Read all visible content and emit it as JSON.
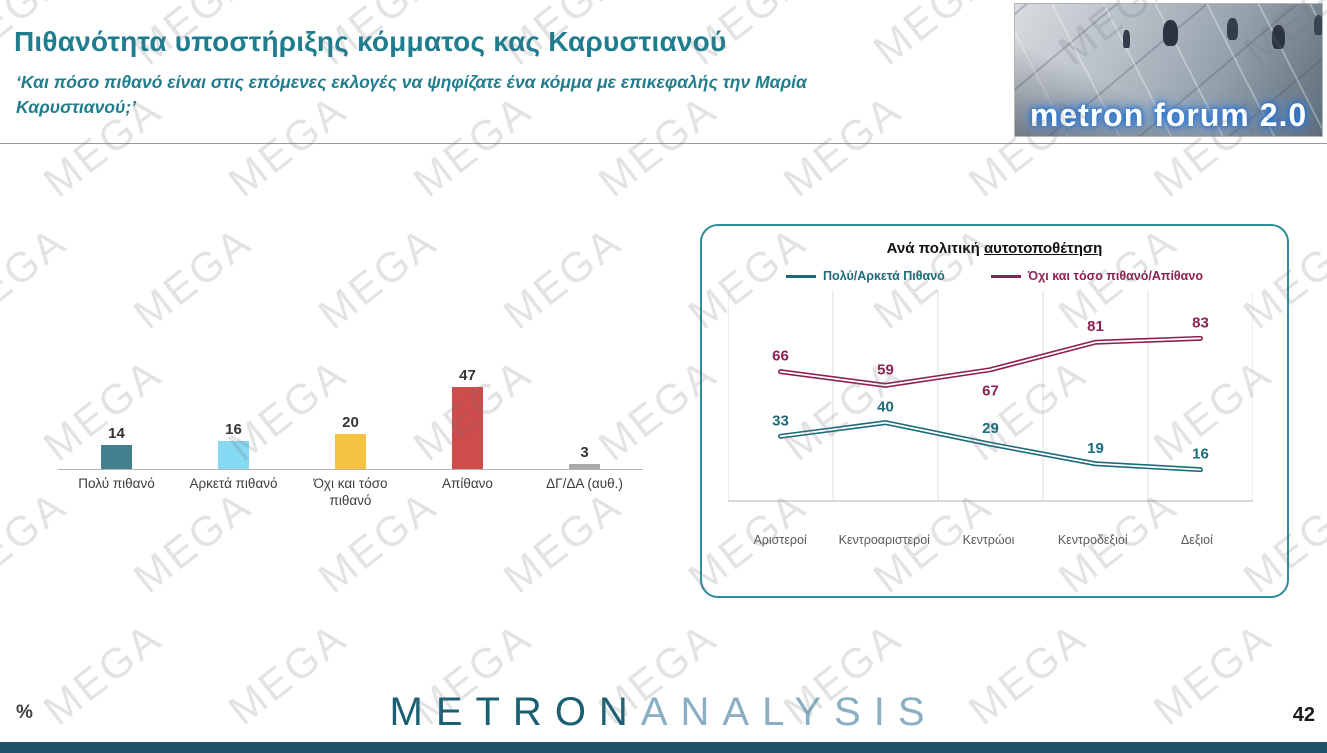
{
  "header": {
    "title": "Πιθανότητα υποστήριξης κόμματος κας Καρυστιανού",
    "subtitle": "‘Και πόσο πιθανό είναι στις επόμενες εκλογές να ψηφίζατε ένα κόμμα με επικεφαλής την Μαρία Καρυστιανού;’"
  },
  "logo": {
    "text": "metron forum 2.0"
  },
  "watermark": {
    "text": "MEGA"
  },
  "colors": {
    "title_teal": "#1f7d8e",
    "panel_border": "#2e8b9b",
    "bottom_bar": "#1d5269",
    "brand_dark": "#1a5f73",
    "brand_light": "#8aafc4"
  },
  "chart_data": [
    {
      "type": "bar",
      "title": "",
      "categories": [
        "Πολύ πιθανό",
        "Αρκετά πιθανό",
        "Όχι και τόσο πιθανό",
        "Απίθανο",
        "ΔΓ/ΔΑ (αυθ.)"
      ],
      "values": [
        14,
        16,
        20,
        47,
        3
      ],
      "colors": [
        "#41808c",
        "#86d9f2",
        "#f6c244",
        "#cf4c4c",
        "#a9a9a9"
      ],
      "xlabel": "",
      "ylabel": "",
      "ylim": [
        0,
        50
      ],
      "data_labels": true,
      "grid": false
    },
    {
      "type": "line",
      "title": "Ανά πολιτική αυτοτοποθέτηση",
      "title_prefix": "Ανά πολιτική ",
      "title_underline": "αυτοτοποθέτηση",
      "categories": [
        "Αριστεροί",
        "Κεντροαριστεροί",
        "Κεντρώοι",
        "Κεντροδεξιοί",
        "Δεξιοί"
      ],
      "series": [
        {
          "name": "Πολύ/Αρκετά Πιθανό",
          "color": "#1b6b7b",
          "values": [
            33,
            40,
            29,
            19,
            16
          ]
        },
        {
          "name": "Όχι και τόσο πιθανό/Απίθανο",
          "color": "#8e2152",
          "values": [
            66,
            59,
            67,
            81,
            83
          ]
        }
      ],
      "ylim": [
        0,
        100
      ],
      "legend_position": "top",
      "grid": "vertical",
      "data_labels": true
    }
  ],
  "footer": {
    "percent": "%",
    "brand_metron": "METRON",
    "brand_analysis": "ANALYSIS",
    "page_number": "42"
  }
}
